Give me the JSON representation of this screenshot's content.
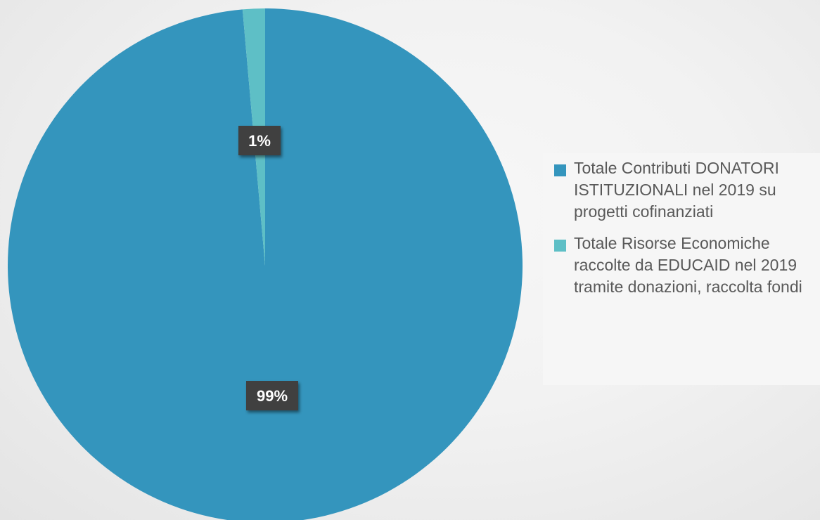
{
  "chart_data": {
    "type": "pie",
    "title": "",
    "categories": [
      "Totale Contributi DONATORI ISTITUZIONALI nel 2019 su progetti cofinanziati",
      "Totale Risorse Economiche raccolte da EDUCAID nel 2019 tramite donazioni, raccolta fondi"
    ],
    "values": [
      98.6,
      1.4
    ],
    "data_labels": [
      "99%",
      "1%"
    ],
    "colors": [
      "#3495bd",
      "#5ebfc6"
    ],
    "legend_position": "right"
  }
}
